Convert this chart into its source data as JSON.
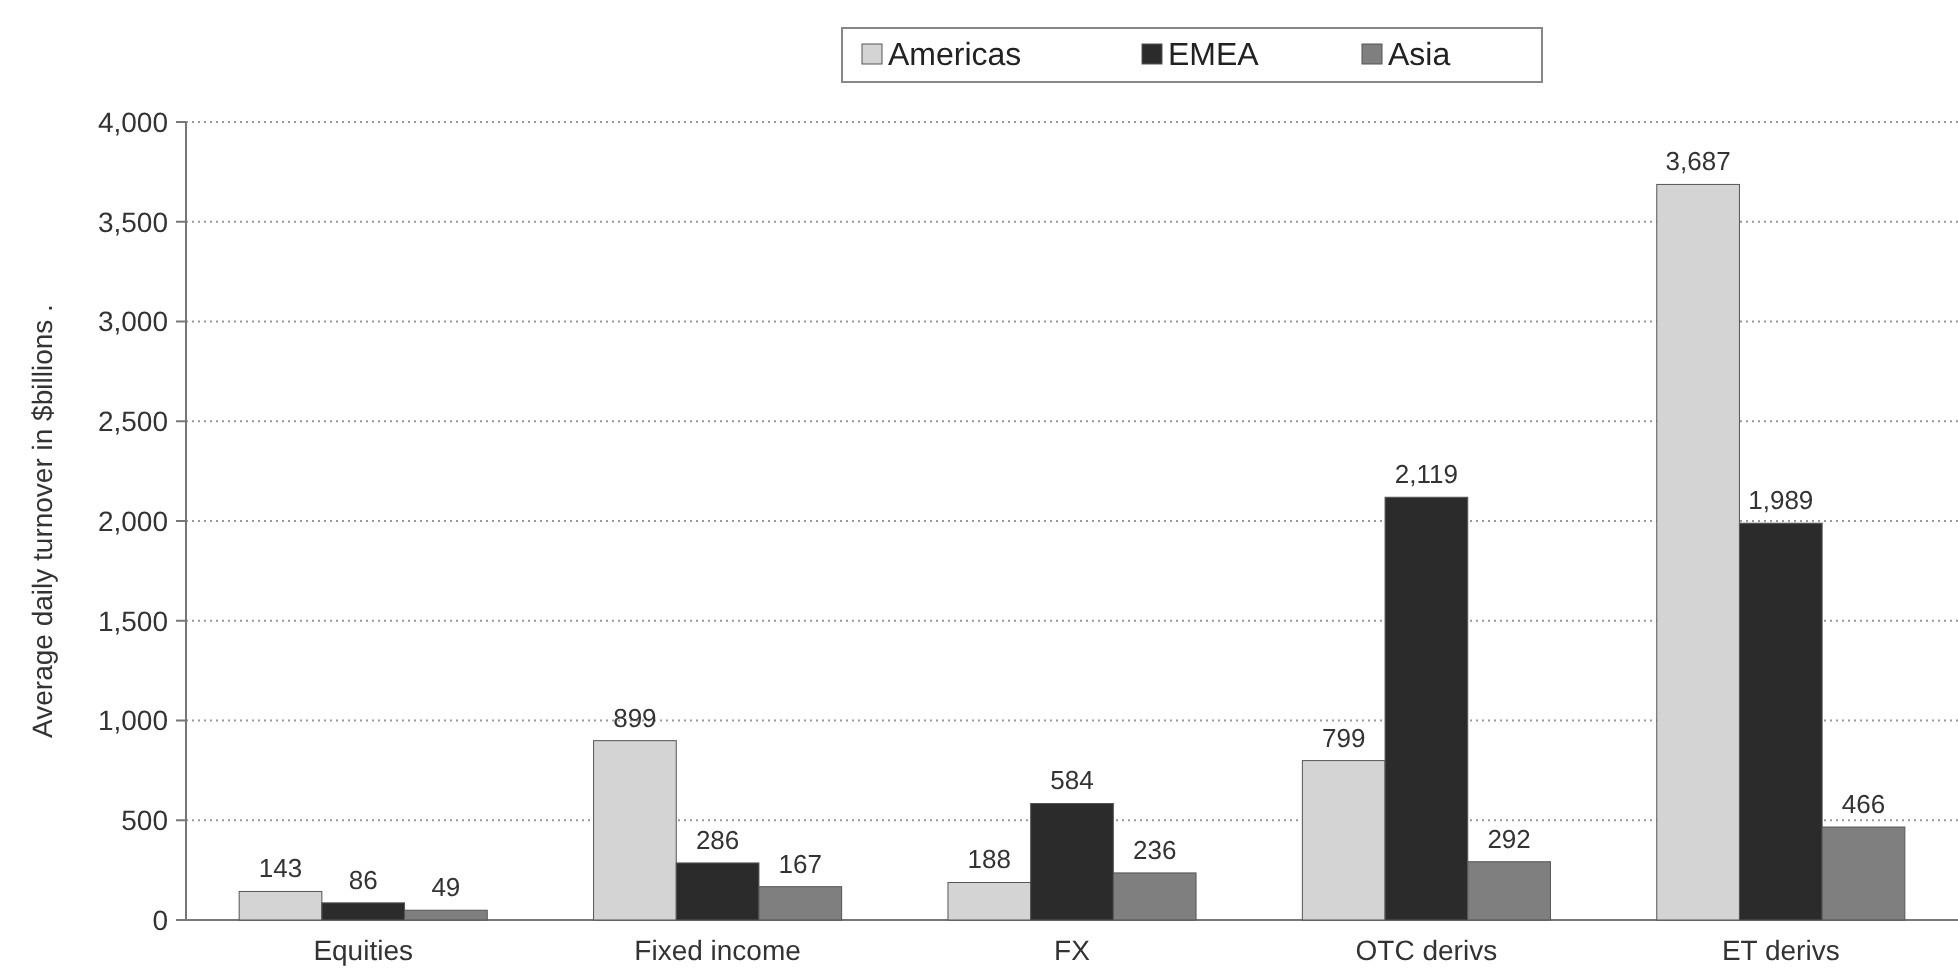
{
  "chart_data": {
    "type": "bar",
    "ylabel": "Average daily turnover in $billions .",
    "categories": [
      "Equities",
      "Fixed income",
      "FX",
      "OTC derivs",
      "ET derivs"
    ],
    "series": [
      {
        "name": "Americas",
        "color": "#d4d4d4",
        "values": [
          143,
          899,
          188,
          799,
          3687
        ],
        "value_labels": [
          "143",
          "899",
          "188",
          "799",
          "3,687"
        ]
      },
      {
        "name": "EMEA",
        "color": "#2b2b2b",
        "values": [
          86,
          286,
          584,
          2119,
          1989
        ],
        "value_labels": [
          "86",
          "286",
          "584",
          "2,119",
          "1,989"
        ]
      },
      {
        "name": "Asia",
        "color": "#7f7f7f",
        "values": [
          49,
          167,
          236,
          292,
          466
        ],
        "value_labels": [
          "49",
          "167",
          "236",
          "292",
          "466"
        ]
      }
    ],
    "ylim": [
      0,
      4000
    ],
    "yticks": [
      {
        "value": 0,
        "label": "0"
      },
      {
        "value": 500,
        "label": "500"
      },
      {
        "value": 1000,
        "label": "1,000"
      },
      {
        "value": 1500,
        "label": "1,500"
      },
      {
        "value": 2000,
        "label": "2,000"
      },
      {
        "value": 2500,
        "label": "2,500"
      },
      {
        "value": 3000,
        "label": "3,000"
      },
      {
        "value": 3500,
        "label": "3,500"
      },
      {
        "value": 4000,
        "label": "4,000"
      }
    ],
    "grid": "y",
    "legend": "top"
  }
}
